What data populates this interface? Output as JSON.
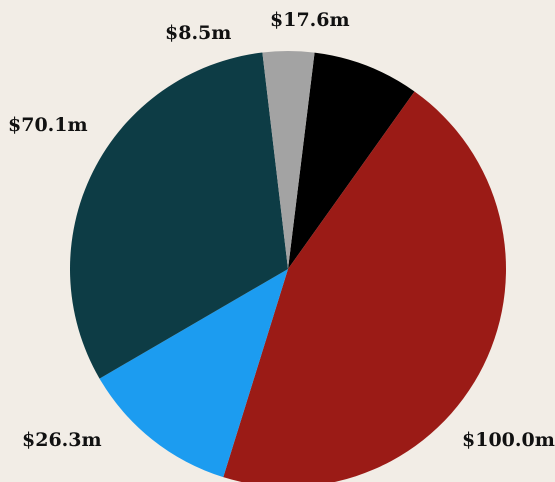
{
  "chart_data": {
    "type": "pie",
    "slices": [
      {
        "label": "$17.6m",
        "value": 17.6,
        "color": "#000000"
      },
      {
        "label": "$100.0m",
        "value": 100.0,
        "color": "#9b1b16"
      },
      {
        "label": "$26.3m",
        "value": 26.3,
        "color": "#1c9cf0"
      },
      {
        "label": "$70.1m",
        "value": 70.1,
        "color": "#0d3c45"
      },
      {
        "label": "$8.5m",
        "value": 8.5,
        "color": "#a3a3a3"
      }
    ],
    "start_angle_deg": 7,
    "direction": "clockwise",
    "background": "#f2ede6"
  }
}
